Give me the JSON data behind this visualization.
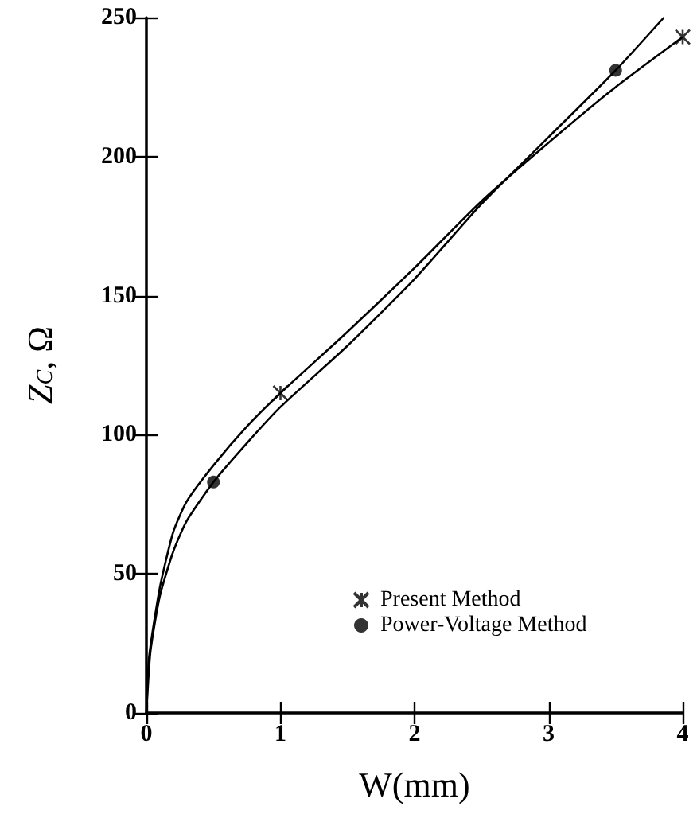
{
  "chart_data": {
    "type": "line",
    "xlabel": "W(mm)",
    "ylabel": "Z$_{C}$, Ω",
    "xlim": [
      0,
      4
    ],
    "xticks": [
      0,
      1,
      2,
      3,
      4
    ],
    "ylim": [
      0,
      250
    ],
    "yticks": [
      0,
      50,
      100,
      150,
      200,
      250
    ],
    "grid": false,
    "legend": "bottom right",
    "line_style": "solid",
    "series": [
      {
        "color": "#000000",
        "marker": "none",
        "x": [
          0,
          0.02,
          0.1,
          0.2,
          0.3,
          0.5,
          0.75,
          1,
          1.5,
          2,
          2.5,
          3,
          3.5,
          4
        ],
        "values": [
          0,
          20,
          45,
          65,
          76,
          89,
          103,
          115,
          137,
          160,
          184,
          205,
          225,
          243
        ]
      },
      {
        "color": "#000000",
        "marker": "none",
        "x": [
          0,
          0.03,
          0.1,
          0.2,
          0.3,
          0.5,
          0.75,
          1,
          1.5,
          2,
          2.5,
          3,
          3.5,
          3.86
        ],
        "values": [
          0,
          22,
          42,
          58,
          69,
          83,
          97,
          110,
          132,
          156,
          183,
          207,
          231,
          250
        ]
      },
      {
        "type": "scatter",
        "name": "Present Method",
        "color": "#000000",
        "marker": "cross",
        "x": [
          1,
          4
        ],
        "values": [
          115,
          243
        ]
      },
      {
        "type": "scatter",
        "name": "Power-Voltage Method",
        "color": "#000000",
        "marker": "circle",
        "x": [
          0.5,
          3.5
        ],
        "values": [
          83,
          231
        ]
      }
    ]
  }
}
